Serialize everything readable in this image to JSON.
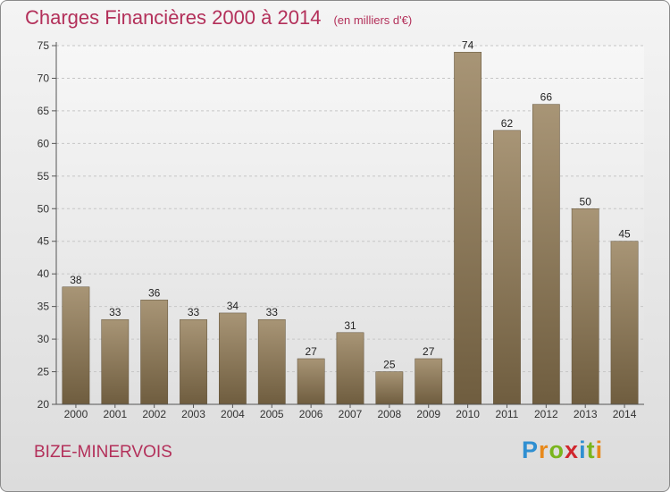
{
  "header": {
    "title": "Charges Financières 2000 à 2014",
    "unit": "(en milliers d'€)"
  },
  "footer": {
    "commune": "BIZE-MINERVOIS",
    "logo": "Proxiti"
  },
  "colors": {
    "title": "#b3305a",
    "bar_top": "#a89576",
    "bar_bottom": "#6f5d3f"
  },
  "chart_data": {
    "type": "bar",
    "title": "Charges Financières 2000 à 2014",
    "subtitle": "(en milliers d'€)",
    "xlabel": "",
    "ylabel": "",
    "categories": [
      "2000",
      "2001",
      "2002",
      "2003",
      "2004",
      "2005",
      "2006",
      "2007",
      "2008",
      "2009",
      "2010",
      "2011",
      "2012",
      "2013",
      "2014"
    ],
    "values": [
      38,
      33,
      36,
      33,
      34,
      33,
      27,
      31,
      25,
      27,
      74,
      62,
      66,
      50,
      45
    ],
    "ylim": [
      20,
      75
    ],
    "yticks": [
      20,
      25,
      30,
      35,
      40,
      45,
      50,
      55,
      60,
      65,
      70,
      75
    ],
    "grid": true,
    "legend": "none"
  }
}
